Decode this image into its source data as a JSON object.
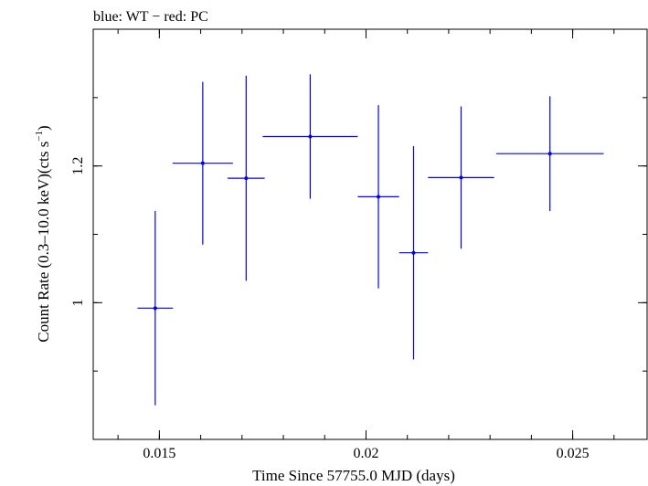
{
  "chart_data": {
    "type": "scatter",
    "title": "blue: WT − red: PC",
    "xlabel": "Time Since 57755.0 MJD (days)",
    "ylabel_main": "Count Rate (0.3–10.0 keV)(cts s",
    "ylabel_sup": "−1",
    "ylabel_close": ")",
    "xlim": [
      0.0134,
      0.0268
    ],
    "ylim": [
      0.8,
      1.4
    ],
    "x_ticks": [
      {
        "value": 0.015,
        "label": "0.015"
      },
      {
        "value": 0.02,
        "label": "0.02"
      },
      {
        "value": 0.025,
        "label": "0.025"
      }
    ],
    "x_minor_step": 0.001,
    "y_ticks": [
      {
        "value": 1.0,
        "label": "1"
      },
      {
        "value": 1.2,
        "label": "1.2"
      }
    ],
    "y_minor_step": 0.1,
    "series": [
      {
        "name": "WT",
        "color": "#0000ee",
        "points": [
          {
            "x": 0.0149,
            "xerr": 0.00043,
            "y": 0.992,
            "yerr_lo": 0.142,
            "yerr_hi": 0.142
          },
          {
            "x": 0.01605,
            "xerr": 0.00073,
            "y": 1.204,
            "yerr_lo": 0.119,
            "yerr_hi": 0.119
          },
          {
            "x": 0.0171,
            "xerr": 0.00045,
            "y": 1.182,
            "yerr_lo": 0.15,
            "yerr_hi": 0.15
          },
          {
            "x": 0.01865,
            "xerr": 0.00115,
            "y": 1.243,
            "yerr_lo": 0.091,
            "yerr_hi": 0.091
          },
          {
            "x": 0.0203,
            "xerr": 0.0005,
            "y": 1.155,
            "yerr_lo": 0.134,
            "yerr_hi": 0.134
          },
          {
            "x": 0.02115,
            "xerr": 0.00035,
            "y": 1.073,
            "yerr_lo": 0.156,
            "yerr_hi": 0.156
          },
          {
            "x": 0.0223,
            "xerr": 0.0008,
            "y": 1.183,
            "yerr_lo": 0.104,
            "yerr_hi": 0.104
          },
          {
            "x": 0.02445,
            "xerr": 0.0013,
            "y": 1.218,
            "yerr_lo": 0.084,
            "yerr_hi": 0.084
          }
        ]
      }
    ]
  }
}
